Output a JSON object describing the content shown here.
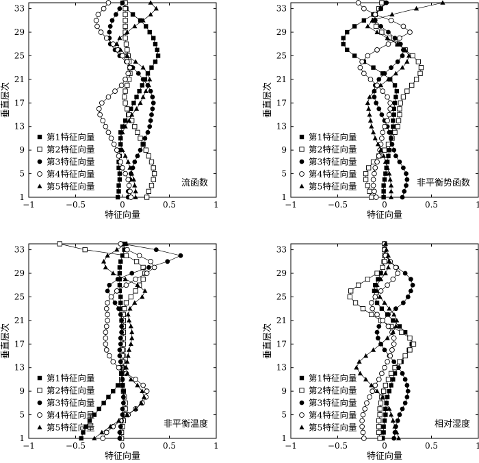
{
  "figure": {
    "legend_labels": [
      "第1特征向量",
      "第2特征向量",
      "第3特征向量",
      "第4特征向量",
      "第5特征向量"
    ],
    "marker_styles": [
      "filled-square",
      "open-square",
      "filled-circle",
      "open-circle",
      "filled-triangle"
    ]
  },
  "chart_data": [
    {
      "type": "line",
      "title": "流函数",
      "xlabel": "特征向量",
      "ylabel": "垂直层次",
      "xlim": [
        -1,
        1
      ],
      "ylim": [
        1,
        34
      ],
      "xticks": [
        "−1",
        "−0.5",
        "0",
        "0.5",
        "1"
      ],
      "yticks": [
        "1",
        "5",
        "9",
        "13",
        "17",
        "21",
        "25",
        "29",
        "33"
      ],
      "legend": "bottom-left",
      "y": [
        1,
        2,
        3,
        4,
        5,
        6,
        7,
        8,
        9,
        10,
        11,
        12,
        13,
        14,
        15,
        16,
        17,
        18,
        19,
        20,
        21,
        22,
        23,
        24,
        25,
        26,
        27,
        28,
        29,
        30,
        31,
        32,
        33,
        34
      ],
      "series": [
        {
          "name": "第1特征向量",
          "marker": "filled-square",
          "x": [
            -0.05,
            -0.04,
            -0.04,
            -0.03,
            -0.03,
            -0.04,
            -0.04,
            -0.03,
            -0.03,
            -0.02,
            -0.02,
            -0.02,
            0.0,
            0.03,
            0.06,
            0.09,
            0.12,
            0.15,
            0.18,
            0.21,
            0.24,
            0.27,
            0.31,
            0.35,
            0.38,
            0.37,
            0.35,
            0.33,
            0.29,
            0.25,
            0.19,
            0.11,
            0.04,
            0.0
          ]
        },
        {
          "name": "第2特征向量",
          "marker": "open-square",
          "x": [
            0.26,
            0.28,
            0.31,
            0.33,
            0.34,
            0.33,
            0.31,
            0.28,
            0.25,
            0.22,
            0.19,
            0.16,
            0.13,
            0.1,
            0.07,
            0.05,
            0.03,
            0.02,
            0.03,
            0.05,
            0.07,
            0.08,
            0.08,
            0.07,
            0.06,
            0.05,
            0.04,
            0.03,
            0.03,
            0.03,
            0.03,
            0.03,
            0.03,
            0.03
          ]
        },
        {
          "name": "第3特征向量",
          "marker": "filled-circle",
          "x": [
            0.06,
            0.06,
            0.07,
            0.08,
            0.09,
            0.11,
            0.13,
            0.16,
            0.19,
            0.22,
            0.24,
            0.27,
            0.29,
            0.3,
            0.31,
            0.32,
            0.33,
            0.32,
            0.3,
            0.27,
            0.22,
            0.17,
            0.11,
            0.04,
            -0.03,
            -0.08,
            -0.13,
            -0.14,
            -0.14,
            -0.13,
            -0.11,
            -0.07,
            -0.03,
            0.0
          ]
        },
        {
          "name": "第4特征向量",
          "marker": "open-circle",
          "x": [
            0.09,
            0.08,
            0.07,
            0.06,
            0.03,
            0.0,
            -0.02,
            -0.04,
            -0.06,
            -0.09,
            -0.12,
            -0.15,
            -0.18,
            -0.21,
            -0.24,
            -0.25,
            -0.22,
            -0.15,
            -0.08,
            -0.01,
            0.03,
            0.06,
            0.08,
            0.05,
            0.0,
            -0.05,
            -0.1,
            -0.17,
            -0.23,
            -0.27,
            -0.28,
            -0.26,
            -0.2,
            -0.15
          ]
        },
        {
          "name": "第5特征向量",
          "marker": "filled-triangle",
          "x": [
            0.14,
            0.14,
            0.13,
            0.12,
            0.1,
            0.08,
            0.06,
            0.03,
            0.0,
            -0.02,
            -0.02,
            0.0,
            0.03,
            0.07,
            0.1,
            0.15,
            0.19,
            0.22,
            0.25,
            0.28,
            0.29,
            0.27,
            0.22,
            0.14,
            0.05,
            -0.02,
            -0.06,
            -0.03,
            0.05,
            0.13,
            0.22,
            0.3,
            0.36,
            0.3
          ]
        }
      ]
    },
    {
      "type": "line",
      "title": "非平衡势函数",
      "xlabel": "特征向量",
      "ylabel": "垂直层次",
      "xlim": [
        -1,
        1
      ],
      "ylim": [
        1,
        34
      ],
      "xticks": [
        "−1",
        "−0.5",
        "0",
        "0.5",
        "1"
      ],
      "yticks": [
        "1",
        "5",
        "9",
        "13",
        "17",
        "21",
        "25",
        "29",
        "33"
      ],
      "legend": "bottom-left",
      "y": [
        1,
        2,
        3,
        4,
        5,
        6,
        7,
        8,
        9,
        10,
        11,
        12,
        13,
        14,
        15,
        16,
        17,
        18,
        19,
        20,
        21,
        22,
        23,
        24,
        25,
        26,
        27,
        28,
        29,
        30,
        31,
        32,
        33,
        34
      ],
      "series": [
        {
          "name": "第1特征向量",
          "marker": "filled-square",
          "x": [
            -0.01,
            -0.01,
            -0.01,
            0.0,
            0.01,
            0.02,
            0.03,
            0.04,
            0.05,
            0.06,
            0.07,
            0.08,
            0.09,
            0.09,
            0.1,
            0.1,
            0.11,
            0.12,
            0.13,
            0.11,
            0.06,
            -0.02,
            -0.12,
            -0.22,
            -0.32,
            -0.4,
            -0.44,
            -0.44,
            -0.4,
            -0.32,
            -0.22,
            -0.12,
            -0.04,
            0.0
          ]
        },
        {
          "name": "第2特征向量",
          "marker": "open-square",
          "x": [
            -0.14,
            -0.16,
            -0.18,
            -0.2,
            -0.2,
            -0.17,
            -0.12,
            -0.06,
            0.0,
            0.04,
            0.08,
            0.11,
            0.14,
            0.15,
            0.16,
            0.16,
            0.17,
            0.2,
            0.24,
            0.29,
            0.34,
            0.38,
            0.39,
            0.36,
            0.3,
            0.22,
            0.14,
            0.05,
            -0.03,
            -0.09,
            -0.11,
            -0.1,
            -0.06,
            -0.03
          ]
        },
        {
          "name": "第3特征向量",
          "marker": "filled-circle",
          "x": [
            0.19,
            0.21,
            0.23,
            0.24,
            0.23,
            0.2,
            0.16,
            0.12,
            0.1,
            0.08,
            0.07,
            0.05,
            0.03,
            0.0,
            -0.03,
            -0.06,
            -0.09,
            -0.11,
            -0.11,
            -0.1,
            -0.06,
            0.0,
            0.07,
            0.14,
            0.19,
            0.2,
            0.17,
            0.11,
            0.04,
            -0.04,
            -0.1,
            -0.1,
            -0.04,
            0.02
          ]
        },
        {
          "name": "第4特征向量",
          "marker": "open-circle",
          "x": [
            -0.09,
            -0.11,
            -0.12,
            -0.12,
            -0.11,
            -0.1,
            -0.08,
            -0.06,
            -0.05,
            -0.04,
            -0.03,
            -0.02,
            0.0,
            0.03,
            0.05,
            0.06,
            0.06,
            0.03,
            -0.02,
            -0.08,
            -0.15,
            -0.22,
            -0.26,
            -0.24,
            -0.18,
            -0.08,
            0.04,
            0.16,
            0.27,
            0.2,
            0.07,
            -0.1,
            -0.22,
            -0.28
          ]
        },
        {
          "name": "第5特征向量",
          "marker": "filled-triangle",
          "x": [
            0.07,
            0.07,
            0.07,
            0.06,
            0.05,
            0.03,
            0.01,
            -0.01,
            -0.04,
            -0.07,
            -0.1,
            -0.12,
            -0.14,
            -0.15,
            -0.16,
            -0.17,
            -0.18,
            -0.16,
            -0.11,
            -0.04,
            0.04,
            0.12,
            0.19,
            0.24,
            0.26,
            0.22,
            0.14,
            0.03,
            -0.08,
            -0.18,
            -0.13,
            0.08,
            0.34,
            0.62
          ]
        }
      ]
    },
    {
      "type": "line",
      "title": "非平衡温度",
      "xlabel": "特征向量",
      "ylabel": "垂直层次",
      "xlim": [
        -1,
        1
      ],
      "ylim": [
        1,
        34
      ],
      "xticks": [
        "−1",
        "−0.5",
        "0",
        "0.5",
        "1"
      ],
      "yticks": [
        "1",
        "5",
        "9",
        "13",
        "17",
        "21",
        "25",
        "29",
        "33"
      ],
      "legend": "bottom-left",
      "y": [
        1,
        2,
        3,
        4,
        5,
        6,
        7,
        8,
        9,
        10,
        11,
        12,
        13,
        14,
        15,
        16,
        17,
        18,
        19,
        20,
        21,
        22,
        23,
        24,
        25,
        26,
        27,
        28,
        29,
        30,
        31,
        32,
        33,
        34
      ],
      "series": [
        {
          "name": "第1特征向量",
          "marker": "filled-square",
          "x": [
            -0.44,
            -0.42,
            -0.39,
            -0.35,
            -0.3,
            -0.25,
            -0.2,
            -0.15,
            -0.1,
            -0.05,
            -0.01,
            0.01,
            0.01,
            0.01,
            0.01,
            0.01,
            0.0,
            0.0,
            0.0,
            0.0,
            -0.01,
            -0.01,
            -0.02,
            -0.02,
            -0.02,
            -0.03,
            -0.03,
            -0.03,
            -0.03,
            -0.03,
            -0.02,
            0.0,
            0.02,
            0.03
          ]
        },
        {
          "name": "第2特征向量",
          "marker": "open-square",
          "x": [
            -0.01,
            -0.01,
            0.0,
            0.01,
            0.02,
            0.03,
            0.03,
            0.02,
            0.01,
            0.0,
            -0.01,
            -0.01,
            -0.01,
            0.0,
            0.0,
            0.0,
            0.01,
            0.01,
            0.01,
            0.01,
            0.01,
            0.01,
            0.02,
            0.04,
            0.09,
            0.14,
            0.18,
            0.22,
            0.24,
            0.22,
            0.15,
            0.04,
            -0.4,
            -0.67
          ]
        },
        {
          "name": "第3特征向量",
          "marker": "filled-circle",
          "x": [
            -0.03,
            -0.03,
            -0.02,
            -0.01,
            0.0,
            0.0,
            0.01,
            0.01,
            0.01,
            0.0,
            0.0,
            -0.01,
            -0.02,
            -0.02,
            -0.03,
            -0.03,
            -0.02,
            -0.02,
            -0.01,
            -0.01,
            -0.01,
            -0.02,
            -0.04,
            -0.08,
            -0.12,
            -0.16,
            -0.14,
            -0.05,
            0.1,
            0.28,
            0.48,
            0.62,
            0.36,
            0.0
          ]
        },
        {
          "name": "第4特征向量",
          "marker": "open-circle",
          "x": [
            -0.21,
            -0.17,
            -0.1,
            -0.02,
            0.06,
            0.14,
            0.21,
            0.25,
            0.26,
            0.22,
            0.14,
            0.04,
            -0.04,
            -0.1,
            -0.14,
            -0.17,
            -0.18,
            -0.18,
            -0.18,
            -0.17,
            -0.16,
            -0.16,
            -0.17,
            -0.16,
            -0.12,
            -0.06,
            0.04,
            0.14,
            0.26,
            0.34,
            0.3,
            0.18,
            0.05,
            -0.02
          ]
        },
        {
          "name": "第5特征向量",
          "marker": "filled-triangle",
          "x": [
            -0.3,
            -0.22,
            -0.13,
            -0.04,
            0.05,
            0.14,
            0.2,
            0.23,
            0.21,
            0.16,
            0.09,
            0.05,
            0.04,
            0.05,
            0.06,
            0.07,
            0.09,
            0.1,
            0.1,
            0.09,
            0.07,
            0.06,
            0.08,
            0.13,
            0.21,
            0.24,
            0.16,
            0.03,
            -0.1,
            -0.18,
            -0.2,
            -0.16,
            -0.06,
            0.04
          ]
        }
      ]
    },
    {
      "type": "line",
      "title": "相对湿度",
      "xlabel": "特征向量",
      "ylabel": "垂直层次",
      "xlim": [
        -1,
        1
      ],
      "ylim": [
        1,
        34
      ],
      "xticks": [
        "−1",
        "−0.5",
        "0",
        "0.5",
        "1"
      ],
      "yticks": [
        "1",
        "5",
        "9",
        "13",
        "17",
        "21",
        "25",
        "29",
        "33"
      ],
      "legend": "bottom-left",
      "y": [
        1,
        2,
        3,
        4,
        5,
        6,
        7,
        8,
        9,
        10,
        11,
        12,
        13,
        14,
        15,
        16,
        17,
        18,
        19,
        20,
        21,
        22,
        23,
        24,
        25,
        26,
        27,
        28,
        29,
        30,
        31,
        32,
        33,
        34
      ],
      "series": [
        {
          "name": "第1特征向量",
          "marker": "filled-square",
          "x": [
            -0.02,
            -0.01,
            -0.01,
            0.0,
            0.01,
            0.01,
            0.02,
            0.03,
            0.05,
            0.07,
            0.09,
            0.11,
            0.14,
            0.18,
            0.22,
            0.26,
            0.29,
            0.27,
            0.22,
            0.16,
            0.09,
            0.03,
            -0.03,
            -0.08,
            -0.1,
            -0.11,
            -0.1,
            -0.07,
            -0.04,
            -0.02,
            -0.01,
            0.0,
            0.0,
            0.0
          ]
        },
        {
          "name": "第2特征向量",
          "marker": "open-square",
          "x": [
            -0.05,
            -0.06,
            -0.06,
            -0.06,
            -0.05,
            -0.05,
            -0.04,
            -0.03,
            -0.01,
            0.01,
            0.04,
            0.07,
            0.11,
            0.16,
            0.22,
            0.27,
            0.31,
            0.27,
            0.18,
            0.07,
            -0.04,
            -0.14,
            -0.23,
            -0.31,
            -0.37,
            -0.36,
            -0.28,
            -0.18,
            -0.08,
            -0.02,
            0.0,
            0.0,
            0.0,
            0.0
          ]
        },
        {
          "name": "第3特征向量",
          "marker": "filled-circle",
          "x": [
            0.1,
            0.11,
            0.12,
            0.14,
            0.16,
            0.19,
            0.22,
            0.24,
            0.25,
            0.24,
            0.22,
            0.19,
            0.15,
            0.1,
            0.05,
            0.0,
            -0.04,
            -0.07,
            -0.08,
            -0.06,
            -0.02,
            0.04,
            0.12,
            0.2,
            0.25,
            0.28,
            0.3,
            0.28,
            0.22,
            0.13,
            0.06,
            0.02,
            0.0,
            0.0
          ]
        },
        {
          "name": "第4特征向量",
          "marker": "open-circle",
          "x": [
            -0.22,
            -0.23,
            -0.24,
            -0.24,
            -0.23,
            -0.21,
            -0.19,
            -0.16,
            -0.13,
            -0.1,
            -0.06,
            -0.03,
            0.0,
            0.03,
            0.06,
            0.08,
            0.1,
            0.1,
            0.08,
            0.04,
            -0.02,
            -0.08,
            -0.13,
            -0.14,
            -0.1,
            -0.04,
            0.03,
            0.09,
            0.14,
            0.12,
            0.06,
            0.01,
            0.0,
            0.0
          ]
        },
        {
          "name": "第5特征向量",
          "marker": "filled-triangle",
          "x": [
            0.15,
            0.13,
            0.11,
            0.09,
            0.07,
            0.05,
            0.02,
            -0.02,
            -0.08,
            -0.14,
            -0.2,
            -0.26,
            -0.3,
            -0.27,
            -0.2,
            -0.12,
            -0.04,
            0.03,
            0.09,
            0.12,
            0.13,
            0.1,
            0.05,
            0.0,
            -0.05,
            -0.08,
            -0.08,
            -0.04,
            0.01,
            0.04,
            0.05,
            0.04,
            0.02,
            0.01
          ]
        }
      ]
    }
  ]
}
